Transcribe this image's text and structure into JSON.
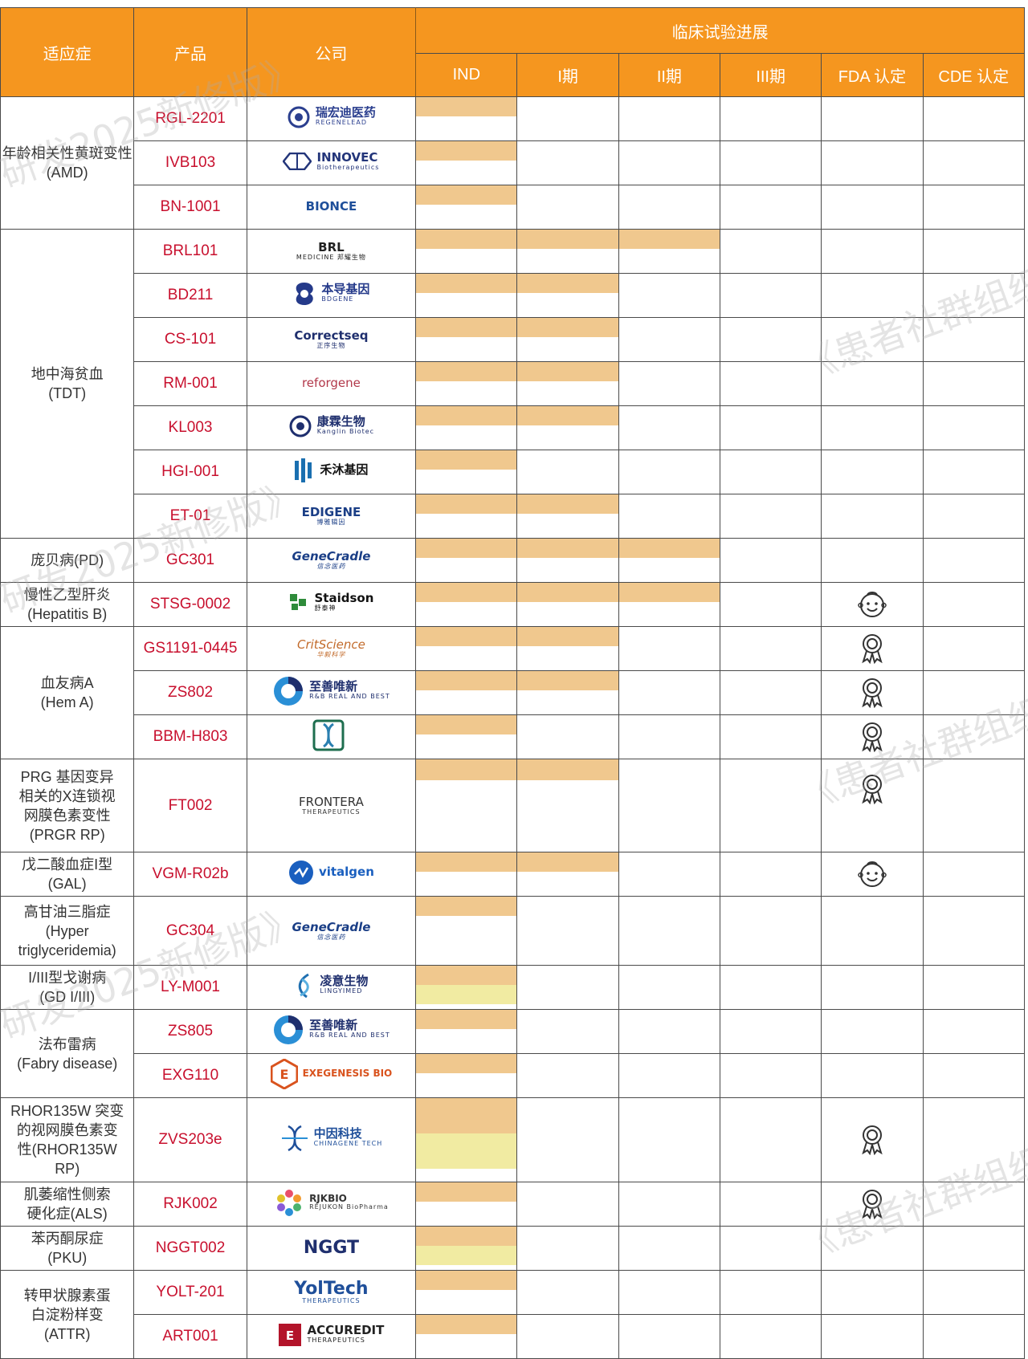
{
  "header": {
    "indication": "适应症",
    "product": "产品",
    "company": "公司",
    "progress": "临床试验进展",
    "stages": [
      "IND",
      "I期",
      "II期",
      "III期",
      "FDA 认定",
      "CDE 认定"
    ]
  },
  "watermark": {
    "a": "《患者社群组织",
    "b": "研发2025新修版》"
  },
  "rows": [
    {
      "indication": "年龄相关性黄斑变性(AMD)",
      "product": "RGL-2201",
      "company": "瑞宏迪医药",
      "company_sub": "REGENELEAD",
      "progress": [
        "IND"
      ],
      "fda": "",
      "cde": ""
    },
    {
      "product": "IVB103",
      "company": "INNOVEC",
      "company_sub": "Biotherapeutics",
      "progress": [
        "IND"
      ],
      "fda": "",
      "cde": ""
    },
    {
      "product": "BN-1001",
      "company": "BIONCE",
      "company_sub": "",
      "progress": [
        "IND"
      ],
      "fda": "",
      "cde": ""
    },
    {
      "indication": "地中海贫血\n(TDT)",
      "product": "BRL101",
      "company": "BRL",
      "company_sub": "MEDICINE 邦耀生物",
      "progress": [
        "IND",
        "I期",
        "II期"
      ],
      "fda": "",
      "cde": ""
    },
    {
      "product": "BD211",
      "company": "本导基因",
      "company_sub": "BDGENE",
      "progress": [
        "IND",
        "I期"
      ],
      "fda": "",
      "cde": ""
    },
    {
      "product": "CS-101",
      "company": "Correctseq",
      "company_sub": "正序生物",
      "progress": [
        "IND",
        "I期"
      ],
      "fda": "",
      "cde": ""
    },
    {
      "product": "RM-001",
      "company": "reforgene",
      "company_sub": "",
      "progress": [
        "IND",
        "I期"
      ],
      "fda": "",
      "cde": ""
    },
    {
      "product": "KL003",
      "company": "康霖生物",
      "company_sub": "Kanglin Biotec",
      "progress": [
        "IND",
        "I期"
      ],
      "fda": "",
      "cde": ""
    },
    {
      "product": "HGI-001",
      "company": "禾沐基因",
      "company_sub": "",
      "progress": [
        "IND"
      ],
      "fda": "",
      "cde": ""
    },
    {
      "product": "ET-01",
      "company": "EDIGENE",
      "company_sub": "博雅辑因",
      "progress": [
        "IND",
        "I期"
      ],
      "fda": "",
      "cde": ""
    },
    {
      "indication": "庞贝病(PD)",
      "product": "GC301",
      "company": "GeneCradle",
      "company_sub": "信念医药",
      "progress": [
        "IND",
        "I期",
        "II期"
      ],
      "fda": "",
      "cde": ""
    },
    {
      "indication": "慢性乙型肝炎\n(Hepatitis B)",
      "product": "STSG-0002",
      "company": "Staidson",
      "company_sub": "舒泰神",
      "progress": [
        "IND",
        "I期",
        "II期"
      ],
      "fda": "baby-face-icon",
      "cde": ""
    },
    {
      "indication": "血友病A\n(Hem A)",
      "product": "GS1191-0445",
      "company": "CritScience",
      "company_sub": "华毅科学",
      "progress": [
        "IND",
        "I期"
      ],
      "fda": "award-ribbon-icon",
      "cde": ""
    },
    {
      "product": "ZS802",
      "company": "至善唯新",
      "company_sub": "R&B REAL AND BEST",
      "progress": [
        "IND",
        "I期"
      ],
      "fda": "award-ribbon-icon",
      "cde": ""
    },
    {
      "product": "BBM-H803",
      "company": "",
      "company_sub": "",
      "progress": [
        "IND"
      ],
      "fda": "award-ribbon-icon",
      "cde": ""
    },
    {
      "indication": "PRG 基因变异\n相关的X连锁视\n网膜色素变性\n(PRGR RP)",
      "product": "FT002",
      "company": "FRONTERA",
      "company_sub": "THERAPEUTICS",
      "progress": [
        "IND",
        "I期"
      ],
      "fda": "award-ribbon-icon",
      "cde": ""
    },
    {
      "indication": "戊二酸血症I型\n(GAL)",
      "product": "VGM-R02b",
      "company": "vitalgen",
      "company_sub": "",
      "progress": [
        "IND",
        "I期"
      ],
      "fda": "baby-face-icon",
      "cde": ""
    },
    {
      "indication": "高甘油三脂症\n(Hyper\ntriglyceridemia)",
      "product": "GC304",
      "company": "GeneCradle",
      "company_sub": "信念医药",
      "progress": [
        "IND"
      ],
      "fda": "",
      "cde": ""
    },
    {
      "indication": "I/III型戈谢病\n(GD I/III)",
      "product": "LY-M001",
      "company": "凌意生物",
      "company_sub": "LINGYIMED",
      "progress": [
        "IND"
      ],
      "fda": "",
      "cde": ""
    },
    {
      "indication": "法布雷病\n(Fabry disease)",
      "product": "ZS805",
      "company": "至善唯新",
      "company_sub": "R&B REAL AND BEST",
      "progress": [
        "IND"
      ],
      "fda": "",
      "cde": ""
    },
    {
      "product": "EXG110",
      "company": "EXEGENESIS BIO",
      "company_sub": "",
      "progress": [
        "IND"
      ],
      "fda": "",
      "cde": ""
    },
    {
      "indication": "RHOR135W 突变\n的视网膜色素变\n性(RHOR135W\nRP)",
      "product": "ZVS203e",
      "company": "中因科技",
      "company_sub": "CHINAGENE TECH",
      "progress": [
        "IND"
      ],
      "fda": "award-ribbon-icon",
      "cde": ""
    },
    {
      "indication": "肌萎缩性侧索\n硬化症(ALS)",
      "product": "RJK002",
      "company": "RJKBIO",
      "company_sub": "REJUKON BioPharma",
      "progress": [
        "IND"
      ],
      "fda": "award-ribbon-icon",
      "cde": ""
    },
    {
      "indication": "苯丙酮尿症\n(PKU)",
      "product": "NGGT002",
      "company": "NGGT",
      "company_sub": "",
      "progress": [
        "IND"
      ],
      "fda": "",
      "cde": ""
    },
    {
      "indication": "转甲状腺素蛋\n白淀粉样变\n(ATTR)",
      "product": "YOLT-201",
      "company": "YolTech",
      "company_sub": "THERAPEUTICS",
      "progress": [
        "IND"
      ],
      "fda": "",
      "cde": ""
    },
    {
      "product": "ART001",
      "company": "ACCUREDIT",
      "company_sub": "THERAPEUTICS",
      "progress": [
        "IND"
      ],
      "fda": "",
      "cde": ""
    }
  ],
  "colors": {
    "header": "#f5961f",
    "progress_bar": "#f0c88e",
    "progress_bar_alt": "#f1eba2",
    "product_text": "#c8102e"
  }
}
